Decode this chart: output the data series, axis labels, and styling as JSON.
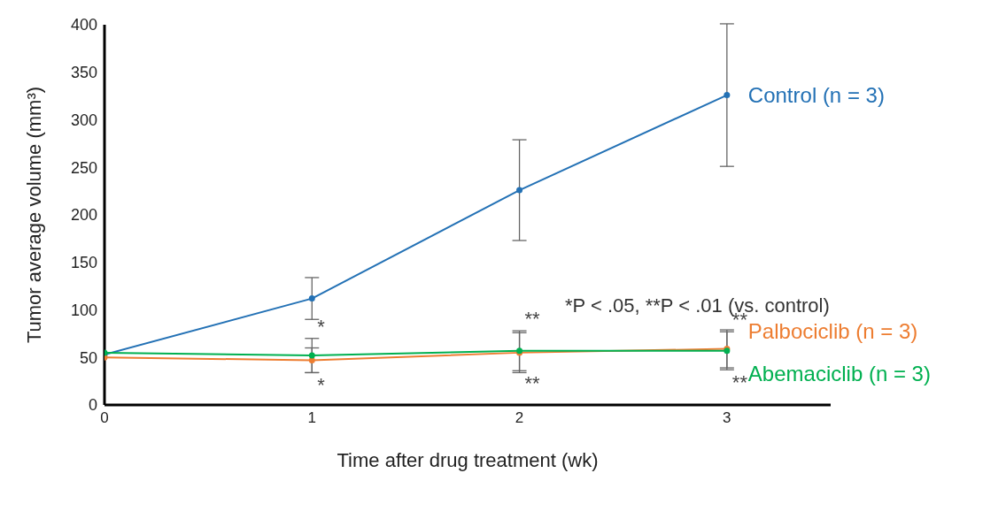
{
  "chart_data": {
    "type": "line",
    "xlabel": "Time after drug treatment (wk)",
    "ylabel": "Tumor average volume (mm³)",
    "x": [
      0,
      1,
      2,
      3
    ],
    "xlim": [
      0,
      3.5
    ],
    "xticks": [
      0,
      1,
      2,
      3
    ],
    "ylim": [
      0,
      400
    ],
    "yticks": [
      0,
      50,
      100,
      150,
      200,
      250,
      300,
      350,
      400
    ],
    "grid": false,
    "legend": false,
    "marker": "circle",
    "series": [
      {
        "name": "Control (n = 3)",
        "color": "#2371b5",
        "values": [
          53,
          112,
          226,
          326
        ],
        "errors": [
          null,
          22,
          53,
          75
        ]
      },
      {
        "name": "Palbociclib (n = 3)",
        "color": "#ed7d31",
        "values": [
          50,
          47,
          55,
          59
        ],
        "errors": [
          null,
          13,
          21,
          20
        ]
      },
      {
        "name": "Abemaciclib (n = 3)",
        "color": "#00b050",
        "values": [
          55,
          52,
          57,
          57
        ],
        "errors": [
          null,
          18,
          21,
          20
        ]
      }
    ],
    "annotations": [
      "*P < .05, **P < .01 (vs. control)",
      {
        "text": "*",
        "x": 1,
        "y": 70
      },
      {
        "text": "*",
        "x": 1,
        "y": 34
      },
      {
        "text": "**",
        "x": 2,
        "y": 78
      },
      {
        "text": "**",
        "x": 2,
        "y": 36
      },
      {
        "text": "**",
        "x": 3,
        "y": 77
      },
      {
        "text": "**",
        "x": 3,
        "y": 37
      }
    ]
  }
}
